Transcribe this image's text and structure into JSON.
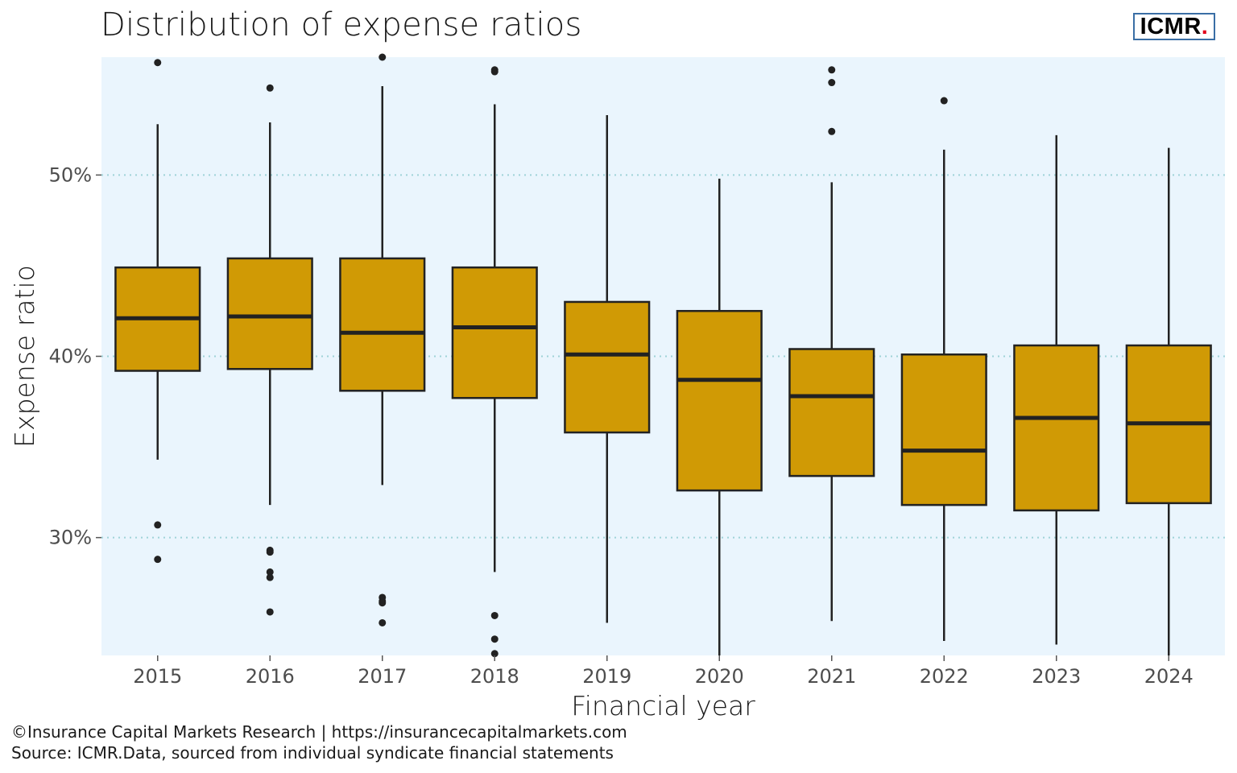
{
  "title": "Distribution of expense ratios",
  "logo": {
    "text": "ICMR",
    "dot": ".",
    "dot_color": "#e2001a",
    "border_color": "#3a6ea5"
  },
  "captions": {
    "line1": "©Insurance Capital Markets Research | https://insurancecapitalmarkets.com",
    "line2": "Source: ICMR.Data, sourced from individual syndicate financial statements"
  },
  "colors": {
    "panel": "#eaf5fd",
    "box_fill": "#d09a05",
    "box_stroke": "#222222",
    "grid": "#9fd3d8"
  },
  "chart_data": {
    "type": "boxplot",
    "xlabel": "Financial year",
    "ylabel": "Expense ratio",
    "ylim": [
      23.5,
      56.5
    ],
    "yticks": [
      30,
      40,
      50
    ],
    "ytick_labels": [
      "30%",
      "40%",
      "50%"
    ],
    "grid": "horizontal dotted at major ticks",
    "categories": [
      "2015",
      "2016",
      "2017",
      "2018",
      "2019",
      "2020",
      "2021",
      "2022",
      "2023",
      "2024"
    ],
    "boxes": [
      {
        "x": "2015",
        "lower_whisker": 34.3,
        "q1": 39.2,
        "median": 42.1,
        "q3": 44.9,
        "upper_whisker": 52.8,
        "outliers": [
          56.2,
          30.7,
          28.8
        ]
      },
      {
        "x": "2016",
        "lower_whisker": 31.8,
        "q1": 39.3,
        "median": 42.2,
        "q3": 45.4,
        "upper_whisker": 52.9,
        "outliers": [
          54.8,
          29.3,
          29.2,
          28.1,
          27.8,
          25.9
        ]
      },
      {
        "x": "2017",
        "lower_whisker": 32.9,
        "q1": 38.1,
        "median": 41.3,
        "q3": 45.4,
        "upper_whisker": 54.9,
        "outliers": [
          56.5,
          26.7,
          26.5,
          26.4,
          25.3
        ]
      },
      {
        "x": "2018",
        "lower_whisker": 28.1,
        "q1": 37.7,
        "median": 41.6,
        "q3": 44.9,
        "upper_whisker": 53.9,
        "outliers": [
          55.8,
          55.7,
          25.7,
          24.4,
          23.6
        ]
      },
      {
        "x": "2019",
        "lower_whisker": 25.3,
        "q1": 35.8,
        "median": 40.1,
        "q3": 43.0,
        "upper_whisker": 53.3,
        "outliers": []
      },
      {
        "x": "2020",
        "lower_whisker": 23.5,
        "q1": 32.6,
        "median": 38.7,
        "q3": 42.5,
        "upper_whisker": 49.8,
        "outliers": []
      },
      {
        "x": "2021",
        "lower_whisker": 25.4,
        "q1": 33.4,
        "median": 37.8,
        "q3": 40.4,
        "upper_whisker": 49.6,
        "outliers": [
          55.8,
          55.1,
          52.4
        ]
      },
      {
        "x": "2022",
        "lower_whisker": 24.3,
        "q1": 31.8,
        "median": 34.8,
        "q3": 40.1,
        "upper_whisker": 51.4,
        "outliers": [
          54.1
        ]
      },
      {
        "x": "2023",
        "lower_whisker": 24.1,
        "q1": 31.5,
        "median": 36.6,
        "q3": 40.6,
        "upper_whisker": 52.2,
        "outliers": []
      },
      {
        "x": "2024",
        "lower_whisker": 23.5,
        "q1": 31.9,
        "median": 36.3,
        "q3": 40.6,
        "upper_whisker": 51.5,
        "outliers": []
      }
    ]
  }
}
